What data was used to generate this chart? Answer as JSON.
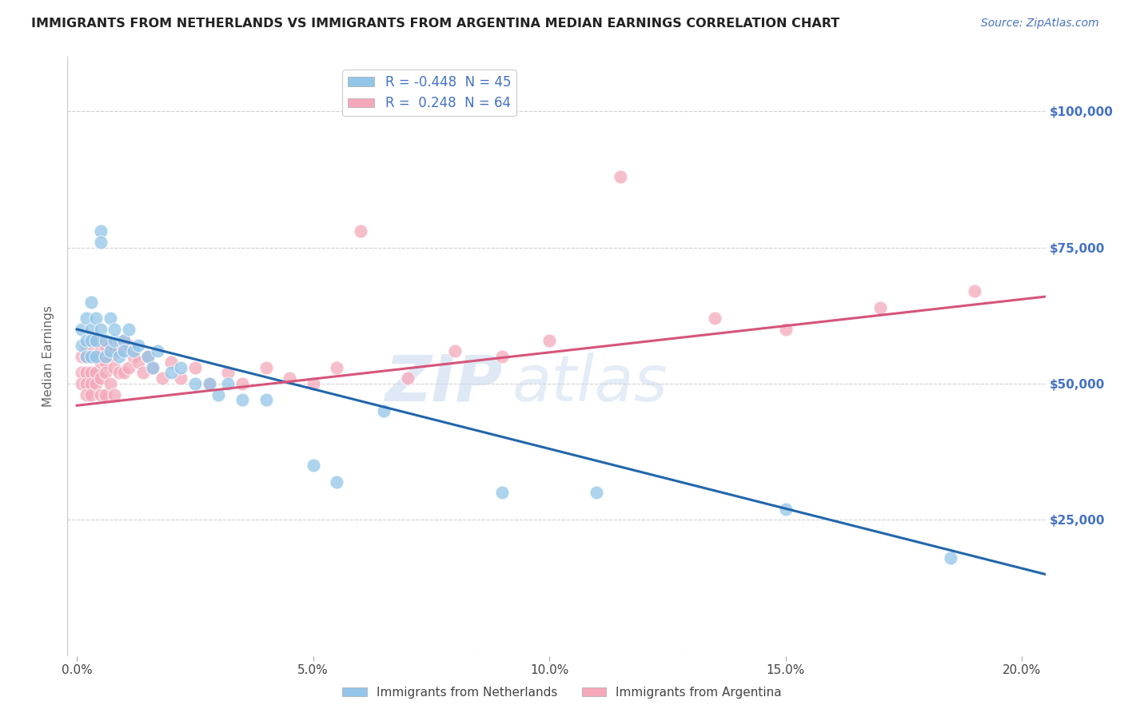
{
  "title": "IMMIGRANTS FROM NETHERLANDS VS IMMIGRANTS FROM ARGENTINA MEDIAN EARNINGS CORRELATION CHART",
  "source_text": "Source: ZipAtlas.com",
  "ylabel": "Median Earnings",
  "xlabel_ticks": [
    "0.0%",
    "5.0%",
    "10.0%",
    "15.0%",
    "20.0%"
  ],
  "xlabel_vals": [
    0.0,
    0.05,
    0.1,
    0.15,
    0.2
  ],
  "ylabel_ticks": [
    0,
    25000,
    50000,
    75000,
    100000
  ],
  "ylabel_labels": [
    "",
    "$25,000",
    "$50,000",
    "$75,000",
    "$100,000"
  ],
  "ylim": [
    0,
    110000
  ],
  "xlim": [
    -0.002,
    0.205
  ],
  "R_netherlands": -0.448,
  "N_netherlands": 45,
  "R_argentina": 0.248,
  "N_argentina": 64,
  "color_netherlands": "#92C5E8",
  "color_argentina": "#F4A8BA",
  "line_color_netherlands": "#2166AC",
  "line_color_argentina": "#D6547A",
  "netherlands_x": [
    0.001,
    0.001,
    0.002,
    0.002,
    0.002,
    0.003,
    0.003,
    0.003,
    0.003,
    0.004,
    0.004,
    0.004,
    0.005,
    0.005,
    0.005,
    0.006,
    0.006,
    0.007,
    0.007,
    0.008,
    0.008,
    0.009,
    0.01,
    0.01,
    0.011,
    0.012,
    0.013,
    0.015,
    0.016,
    0.017,
    0.02,
    0.022,
    0.025,
    0.028,
    0.03,
    0.032,
    0.035,
    0.04,
    0.05,
    0.055,
    0.065,
    0.09,
    0.11,
    0.15,
    0.185
  ],
  "netherlands_y": [
    60000,
    57000,
    55000,
    62000,
    58000,
    65000,
    60000,
    58000,
    55000,
    62000,
    58000,
    55000,
    78000,
    76000,
    60000,
    58000,
    55000,
    62000,
    56000,
    58000,
    60000,
    55000,
    58000,
    56000,
    60000,
    56000,
    57000,
    55000,
    53000,
    56000,
    52000,
    53000,
    50000,
    50000,
    48000,
    50000,
    47000,
    47000,
    35000,
    32000,
    45000,
    30000,
    30000,
    27000,
    18000
  ],
  "argentina_x": [
    0.001,
    0.001,
    0.001,
    0.002,
    0.002,
    0.002,
    0.002,
    0.002,
    0.003,
    0.003,
    0.003,
    0.003,
    0.003,
    0.004,
    0.004,
    0.004,
    0.004,
    0.005,
    0.005,
    0.005,
    0.005,
    0.005,
    0.006,
    0.006,
    0.006,
    0.006,
    0.007,
    0.007,
    0.007,
    0.008,
    0.008,
    0.008,
    0.009,
    0.009,
    0.01,
    0.01,
    0.011,
    0.011,
    0.012,
    0.013,
    0.014,
    0.015,
    0.016,
    0.018,
    0.02,
    0.022,
    0.025,
    0.028,
    0.032,
    0.035,
    0.04,
    0.045,
    0.05,
    0.055,
    0.06,
    0.07,
    0.08,
    0.09,
    0.1,
    0.115,
    0.135,
    0.15,
    0.17,
    0.19
  ],
  "argentina_y": [
    55000,
    52000,
    50000,
    57000,
    55000,
    52000,
    50000,
    48000,
    57000,
    55000,
    52000,
    50000,
    48000,
    58000,
    55000,
    52000,
    50000,
    58000,
    56000,
    54000,
    51000,
    48000,
    57000,
    54000,
    52000,
    48000,
    57000,
    55000,
    50000,
    56000,
    53000,
    48000,
    56000,
    52000,
    58000,
    52000,
    57000,
    53000,
    55000,
    54000,
    52000,
    55000,
    53000,
    51000,
    54000,
    51000,
    53000,
    50000,
    52000,
    50000,
    53000,
    51000,
    50000,
    53000,
    78000,
    51000,
    56000,
    55000,
    58000,
    88000,
    62000,
    60000,
    64000,
    67000
  ],
  "nl_line_x0": 0.0,
  "nl_line_x1": 0.205,
  "nl_line_y0": 60000,
  "nl_line_y1": 15000,
  "ar_line_x0": 0.0,
  "ar_line_x1": 0.205,
  "ar_line_y0": 46000,
  "ar_line_y1": 66000,
  "watermark_zip": "ZIP",
  "watermark_atlas": "atlas",
  "title_color": "#222222",
  "source_color": "#4472C4",
  "axis_label_color": "#666666",
  "tick_color_right": "#4472C4",
  "grid_color": "#d0d0d0",
  "background_color": "#ffffff"
}
